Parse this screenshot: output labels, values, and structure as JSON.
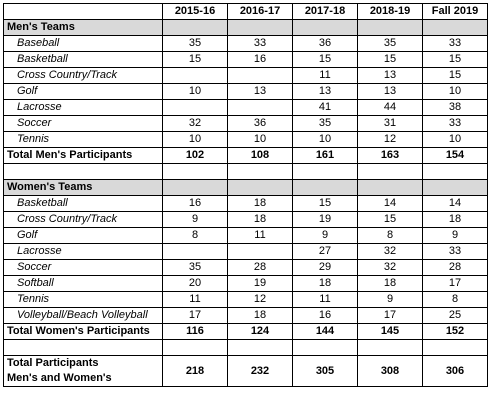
{
  "header": {
    "blank": "",
    "years": [
      "2015-16",
      "2016-17",
      "2017-18",
      "2018-19",
      "Fall 2019"
    ]
  },
  "men": {
    "title": "Men's Teams",
    "rows": [
      {
        "name": "Baseball",
        "values": [
          "35",
          "33",
          "36",
          "35",
          "33"
        ]
      },
      {
        "name": "Basketball",
        "values": [
          "15",
          "16",
          "15",
          "15",
          "15"
        ]
      },
      {
        "name": "Cross Country/Track",
        "values": [
          "",
          "",
          "11",
          "13",
          "15"
        ]
      },
      {
        "name": "Golf",
        "values": [
          "10",
          "13",
          "13",
          "13",
          "10"
        ]
      },
      {
        "name": "Lacrosse",
        "values": [
          "",
          "",
          "41",
          "44",
          "38"
        ]
      },
      {
        "name": "Soccer",
        "values": [
          "32",
          "36",
          "35",
          "31",
          "33"
        ]
      },
      {
        "name": "Tennis",
        "values": [
          "10",
          "10",
          "10",
          "12",
          "10"
        ]
      }
    ],
    "total": {
      "label": "Total Men's Participants",
      "values": [
        "102",
        "108",
        "161",
        "163",
        "154"
      ]
    }
  },
  "women": {
    "title": "Women's Teams",
    "rows": [
      {
        "name": "Basketball",
        "values": [
          "16",
          "18",
          "15",
          "14",
          "14"
        ]
      },
      {
        "name": "Cross Country/Track",
        "values": [
          "9",
          "18",
          "19",
          "15",
          "18"
        ]
      },
      {
        "name": "Golf",
        "values": [
          "8",
          "11",
          "9",
          "8",
          "9"
        ]
      },
      {
        "name": "Lacrosse",
        "values": [
          "",
          "",
          "27",
          "32",
          "33"
        ]
      },
      {
        "name": "Soccer",
        "values": [
          "35",
          "28",
          "29",
          "32",
          "28"
        ]
      },
      {
        "name": "Softball",
        "values": [
          "20",
          "19",
          "18",
          "18",
          "17"
        ]
      },
      {
        "name": "Tennis",
        "values": [
          "11",
          "12",
          "11",
          "9",
          "8"
        ]
      },
      {
        "name": "Volleyball/Beach Volleyball",
        "values": [
          "17",
          "18",
          "16",
          "17",
          "25"
        ]
      }
    ],
    "total": {
      "label": "Total Women's Participants",
      "values": [
        "116",
        "124",
        "144",
        "145",
        "152"
      ]
    }
  },
  "grand_total": {
    "label_line1": "Total Participants",
    "label_line2": "Men's and Women's",
    "values": [
      "218",
      "232",
      "305",
      "308",
      "306"
    ]
  }
}
